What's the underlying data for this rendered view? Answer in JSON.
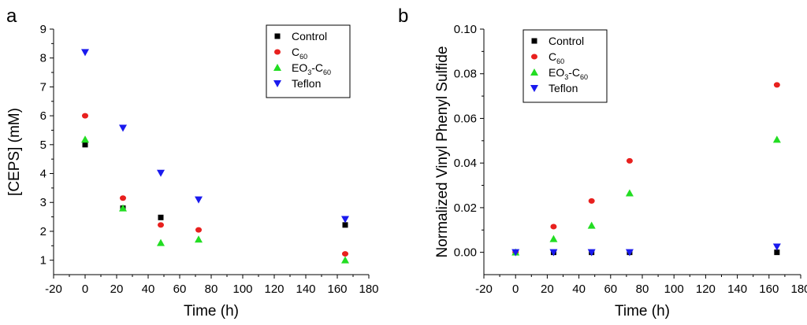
{
  "chart_data": [
    {
      "type": "scatter",
      "panel_label": "a",
      "xlabel": "Time (h)",
      "ylabel": "[CEPS] (mM)",
      "xlim": [
        -20,
        180
      ],
      "ylim": [
        0.5,
        9
      ],
      "xticks": [
        -20,
        0,
        20,
        40,
        60,
        80,
        100,
        120,
        140,
        160,
        180
      ],
      "yticks": [
        1,
        2,
        3,
        4,
        5,
        6,
        7,
        8,
        9
      ],
      "ytick_decimals": 0,
      "legend_position": "top-right",
      "series": [
        {
          "name": "Control",
          "marker": "square",
          "color": "#000000",
          "x": [
            0,
            24,
            48,
            165
          ],
          "y": [
            5.0,
            2.8,
            2.48,
            2.22
          ]
        },
        {
          "name": "C60",
          "name_main": "C",
          "name_sub": "60",
          "marker": "circle",
          "color": "#e8201e",
          "x": [
            0,
            24,
            48,
            72,
            165
          ],
          "y": [
            6.0,
            3.15,
            2.22,
            2.05,
            1.22
          ]
        },
        {
          "name": "EO3-C60",
          "name_parts": [
            "EO",
            "3",
            "-C",
            "60"
          ],
          "marker": "triangle-up",
          "color": "#22dd22",
          "x": [
            0,
            24,
            48,
            72,
            165
          ],
          "y": [
            5.18,
            2.8,
            1.6,
            1.72,
            1.0
          ]
        },
        {
          "name": "Teflon",
          "marker": "triangle-down",
          "color": "#1a1aee",
          "x": [
            0,
            24,
            48,
            72,
            165
          ],
          "y": [
            8.2,
            5.58,
            4.02,
            3.1,
            2.42
          ]
        }
      ]
    },
    {
      "type": "scatter",
      "panel_label": "b",
      "xlabel": "Time (h)",
      "ylabel": "Normalized Vinyl Phenyl Sulfide",
      "xlim": [
        -20,
        180
      ],
      "ylim": [
        -0.01,
        0.1
      ],
      "xticks": [
        -20,
        0,
        20,
        40,
        60,
        80,
        100,
        120,
        140,
        160,
        180
      ],
      "yticks": [
        0.0,
        0.02,
        0.04,
        0.06,
        0.08,
        0.1
      ],
      "ytick_decimals": 2,
      "legend_position": "top-left",
      "series": [
        {
          "name": "Control",
          "marker": "square",
          "color": "#000000",
          "x": [
            0,
            24,
            48,
            72,
            165
          ],
          "y": [
            0,
            0,
            0,
            0,
            0.0
          ]
        },
        {
          "name": "C60",
          "name_main": "C",
          "name_sub": "60",
          "marker": "circle",
          "color": "#e8201e",
          "x": [
            0,
            24,
            48,
            72,
            165
          ],
          "y": [
            0,
            0.0115,
            0.023,
            0.041,
            0.075
          ]
        },
        {
          "name": "EO3-C60",
          "name_parts": [
            "EO",
            "3",
            "-C",
            "60"
          ],
          "marker": "triangle-up",
          "color": "#22dd22",
          "x": [
            0,
            24,
            48,
            72,
            165
          ],
          "y": [
            0,
            0.006,
            0.012,
            0.0265,
            0.0505
          ]
        },
        {
          "name": "Teflon",
          "marker": "triangle-down",
          "color": "#1a1aee",
          "x": [
            0,
            24,
            48,
            72,
            165
          ],
          "y": [
            0,
            0,
            0,
            0,
            0.0025
          ]
        }
      ]
    }
  ]
}
